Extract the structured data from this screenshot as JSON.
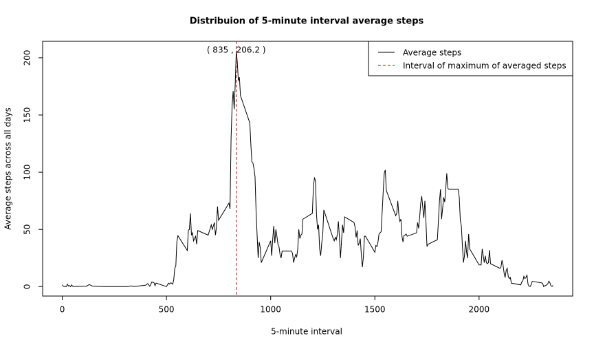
{
  "chart_data": {
    "type": "line",
    "title": "Distribuion of 5-minute interval average steps",
    "x_label": "5-minute interval",
    "y_label": "Average steps across all days",
    "annotation": "( 835 , 206.2 )",
    "x": [
      0,
      5,
      10,
      15,
      20,
      25,
      30,
      35,
      40,
      45,
      50,
      55,
      100,
      115,
      130,
      145,
      200,
      230,
      245,
      300,
      315,
      330,
      345,
      400,
      410,
      420,
      430,
      440,
      445,
      450,
      500,
      505,
      510,
      515,
      520,
      525,
      530,
      535,
      540,
      545,
      550,
      555,
      600,
      605,
      610,
      615,
      620,
      625,
      630,
      640,
      645,
      650,
      700,
      715,
      720,
      730,
      735,
      740,
      745,
      750,
      800,
      805,
      810,
      815,
      820,
      825,
      830,
      835,
      840,
      845,
      850,
      855,
      900,
      905,
      910,
      915,
      920,
      925,
      930,
      935,
      940,
      945,
      950,
      955,
      1000,
      1005,
      1010,
      1015,
      1020,
      1025,
      1030,
      1035,
      1040,
      1045,
      1050,
      1055,
      1100,
      1105,
      1110,
      1115,
      1120,
      1125,
      1130,
      1135,
      1140,
      1145,
      1150,
      1155,
      1200,
      1205,
      1210,
      1215,
      1220,
      1225,
      1230,
      1235,
      1240,
      1245,
      1250,
      1255,
      1300,
      1305,
      1310,
      1315,
      1320,
      1325,
      1330,
      1335,
      1340,
      1345,
      1350,
      1355,
      1400,
      1405,
      1410,
      1415,
      1420,
      1425,
      1430,
      1435,
      1440,
      1445,
      1450,
      1455,
      1500,
      1505,
      1510,
      1515,
      1520,
      1525,
      1530,
      1535,
      1540,
      1545,
      1550,
      1555,
      1600,
      1605,
      1610,
      1615,
      1620,
      1625,
      1630,
      1635,
      1640,
      1645,
      1650,
      1655,
      1700,
      1705,
      1710,
      1715,
      1720,
      1725,
      1730,
      1735,
      1740,
      1745,
      1750,
      1755,
      1800,
      1805,
      1810,
      1815,
      1820,
      1825,
      1830,
      1835,
      1840,
      1845,
      1850,
      1855,
      1900,
      1905,
      1910,
      1915,
      1920,
      1925,
      1930,
      1935,
      1940,
      1945,
      1950,
      1955,
      2000,
      2005,
      2010,
      2015,
      2020,
      2025,
      2030,
      2035,
      2040,
      2045,
      2050,
      2055,
      2100,
      2105,
      2110,
      2115,
      2120,
      2125,
      2130,
      2135,
      2140,
      2145,
      2150,
      2155,
      2200,
      2205,
      2210,
      2215,
      2220,
      2225,
      2230,
      2235,
      2240,
      2245,
      2250,
      2255,
      2300,
      2305,
      2310,
      2315,
      2320,
      2325,
      2330,
      2335,
      2340,
      2345,
      2350,
      2355
    ],
    "series": [
      {
        "name": "Average steps",
        "color": "#000000",
        "values": [
          1.7,
          0.3,
          0.1,
          0.2,
          0.1,
          2.1,
          0.5,
          0.9,
          0,
          1.5,
          0.3,
          0.1,
          0.3,
          0.3,
          1.8,
          0.4,
          0,
          0,
          0,
          0,
          0,
          0.6,
          0.1,
          1.2,
          2.6,
          0.3,
          4.1,
          3.5,
          0.8,
          3.1,
          0,
          1.6,
          3,
          2.2,
          3.3,
          3,
          2.1,
          6.1,
          16,
          18.3,
          39.5,
          44.5,
          31.5,
          49.3,
          50,
          64,
          45,
          47,
          40,
          44,
          37,
          49,
          45,
          54,
          50,
          56,
          45,
          52,
          70,
          58,
          73,
          68,
          129,
          158,
          171,
          155,
          177,
          206.2,
          196,
          180,
          183,
          167,
          143,
          124,
          109,
          108,
          103,
          96,
          66,
          45,
          25,
          39,
          34,
          21,
          40,
          27,
          42,
          53,
          38,
          50,
          44,
          37,
          35,
          28,
          25,
          31,
          31,
          29,
          21,
          25,
          28,
          26,
          33,
          50,
          42,
          45,
          46,
          59,
          64,
          87,
          95,
          93,
          63,
          50,
          54,
          33,
          27,
          38,
          46,
          67,
          42,
          40,
          43,
          41,
          46,
          57,
          43,
          25,
          40,
          54,
          47,
          61,
          56,
          52,
          43,
          49,
          36,
          38,
          42,
          28,
          17,
          26,
          44,
          44,
          30,
          36,
          35,
          39,
          46,
          47,
          48,
          65,
          83,
          99,
          102,
          84,
          62,
          64,
          75,
          63,
          57,
          59,
          44,
          39,
          45,
          45,
          46,
          44,
          47,
          56,
          51,
          61,
          73,
          79,
          69,
          60,
          75,
          57,
          35,
          37,
          41,
          58,
          75,
          85,
          59,
          68,
          78,
          74,
          85,
          99,
          86,
          85,
          85,
          78,
          58,
          53,
          36,
          21,
          27,
          40,
          30,
          25,
          46,
          33,
          19,
          19,
          19,
          33,
          27,
          21,
          27,
          21,
          20,
          21,
          32,
          20,
          16,
          17,
          23,
          19,
          12,
          8,
          14,
          16,
          9,
          7,
          8,
          3,
          1.5,
          4,
          5,
          9,
          7,
          8,
          10,
          2,
          0.3,
          0.1,
          1.6,
          4.6,
          3.3,
          2.8,
          0,
          0.8,
          1,
          1.6,
          2.6,
          4.7,
          3.3,
          0.6,
          0.2,
          1.1
        ]
      }
    ],
    "vline": {
      "name": "Interval of maximum of averaged steps",
      "x": 835,
      "color": "#dd0000"
    },
    "xlim": [
      -94.2,
      2449.2
    ],
    "xticks": [
      0,
      500,
      1000,
      1500,
      2000
    ],
    "ylim": [
      -8.25,
      214.4
    ],
    "yticks": [
      0,
      50,
      100,
      150,
      200
    ],
    "grid": false,
    "legend": "top-right"
  }
}
